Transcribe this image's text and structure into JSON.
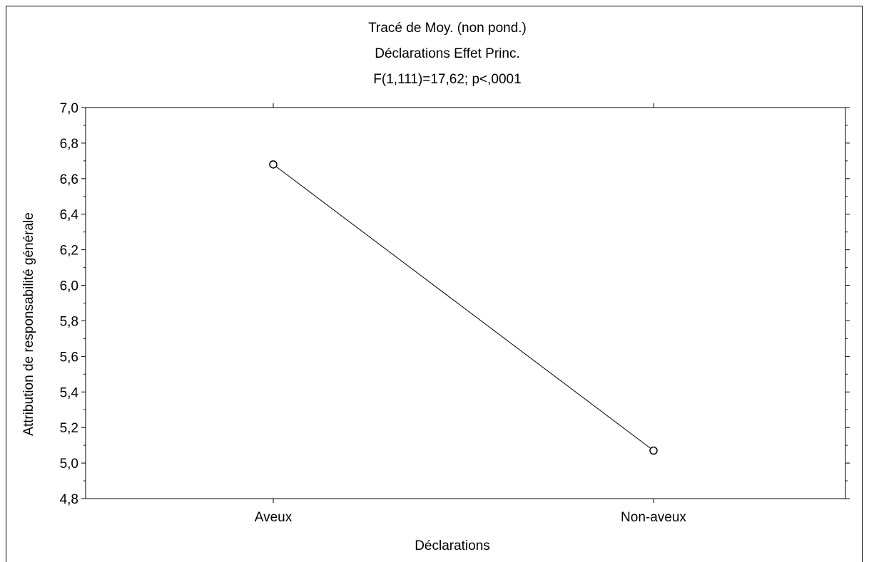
{
  "chart_data": {
    "type": "line",
    "title_lines": [
      "Tracé de Moy. (non pond.)",
      "Déclarations Effet Princ.",
      "F(1,111)=17,62; p<,0001"
    ],
    "xlabel": "Déclarations",
    "ylabel": "Attribution de responsabilité générale",
    "categories": [
      "Aveux",
      "Non-aveux"
    ],
    "values": [
      6.68,
      5.07
    ],
    "ylim": [
      4.8,
      7.0
    ],
    "yticks": [
      "4,8",
      "5,0",
      "5,2",
      "5,4",
      "5,6",
      "5,8",
      "6,0",
      "6,2",
      "6,4",
      "6,6",
      "6,8",
      "7,0"
    ],
    "ytick_values": [
      4.8,
      5.0,
      5.2,
      5.4,
      5.6,
      5.8,
      6.0,
      6.2,
      6.4,
      6.6,
      6.8,
      7.0
    ],
    "grid": false,
    "line_color": "#000000",
    "marker": "open-circle"
  }
}
